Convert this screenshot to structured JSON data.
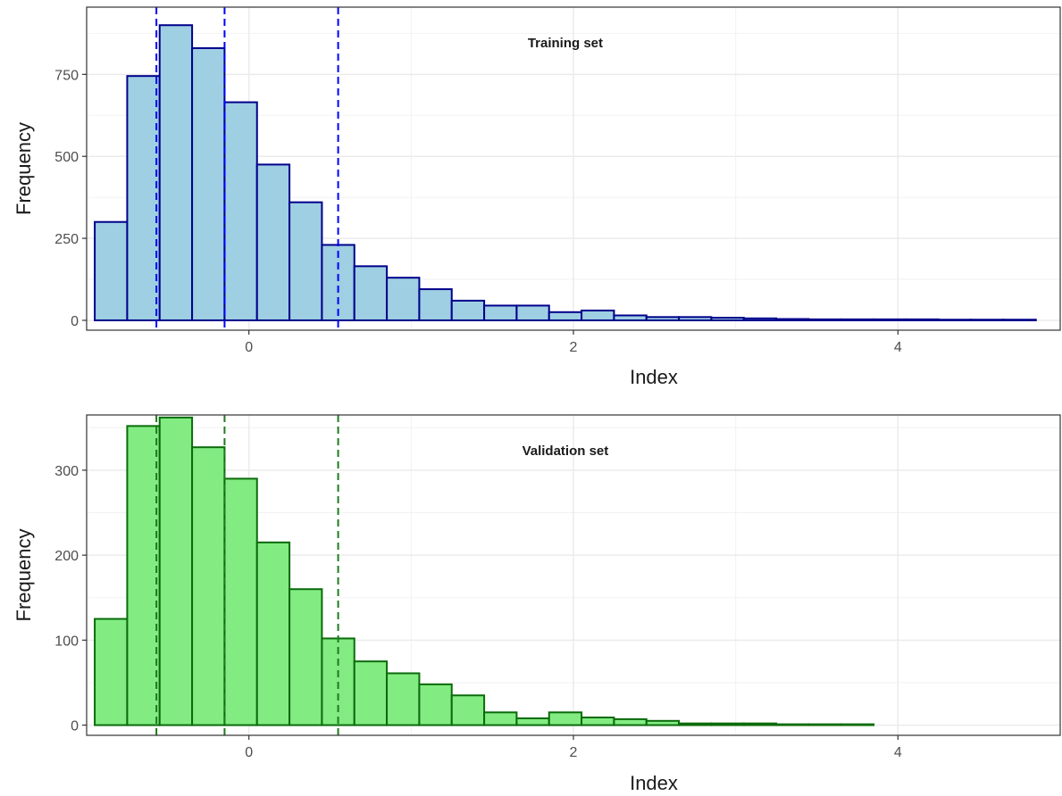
{
  "chart_data": [
    {
      "type": "bar",
      "title": "Training set",
      "xlabel": "Index",
      "ylabel": "Frequency",
      "xlim": [
        -1.0,
        5.0
      ],
      "ylim": [
        -30,
        955
      ],
      "x_ticks": [
        0,
        2,
        4
      ],
      "y_ticks": [
        0,
        250,
        500,
        750
      ],
      "x_minor_gridlines": [
        -1,
        1,
        3,
        5
      ],
      "y_minor_gridlines": [
        125,
        375,
        625,
        875
      ],
      "grid": true,
      "bin_width": 0.2,
      "bin_starts": [
        -0.95,
        -0.75,
        -0.55,
        -0.35,
        -0.15,
        0.05,
        0.25,
        0.45,
        0.65,
        0.85,
        1.05,
        1.25,
        1.45,
        1.65,
        1.85,
        2.05,
        2.25,
        2.45,
        2.65,
        2.85,
        3.05,
        3.25,
        3.45,
        3.65,
        3.85,
        4.05,
        4.25,
        4.45,
        4.65
      ],
      "values": [
        300,
        745,
        900,
        830,
        665,
        475,
        360,
        230,
        165,
        130,
        95,
        60,
        45,
        45,
        25,
        30,
        15,
        10,
        10,
        8,
        6,
        4,
        3,
        3,
        3,
        3,
        2,
        2,
        2
      ],
      "vlines": [
        -0.57,
        -0.15,
        0.55
      ],
      "colors": {
        "fill": "#9ecfe2",
        "stroke": "#00008b",
        "vline": "#0000ff"
      }
    },
    {
      "type": "bar",
      "title": "Validation set",
      "xlabel": "Index",
      "ylabel": "Frequency",
      "xlim": [
        -1.0,
        5.0
      ],
      "ylim": [
        -12,
        365
      ],
      "x_ticks": [
        0,
        2,
        4
      ],
      "y_ticks": [
        0,
        100,
        200,
        300
      ],
      "x_minor_gridlines": [
        -1,
        1,
        3,
        5
      ],
      "y_minor_gridlines": [
        50,
        150,
        250,
        350
      ],
      "grid": true,
      "bin_width": 0.2,
      "bin_starts": [
        -0.95,
        -0.75,
        -0.55,
        -0.35,
        -0.15,
        0.05,
        0.25,
        0.45,
        0.65,
        0.85,
        1.05,
        1.25,
        1.45,
        1.65,
        1.85,
        2.05,
        2.25,
        2.45,
        2.65,
        2.85,
        3.05,
        3.25,
        3.45,
        3.65,
        3.85,
        4.05,
        4.25,
        4.45,
        4.65
      ],
      "values": [
        125,
        352,
        362,
        327,
        290,
        215,
        160,
        102,
        75,
        61,
        48,
        35,
        15,
        8,
        15,
        9,
        7,
        5,
        2,
        2,
        2,
        1,
        1,
        1,
        0,
        0,
        0,
        0,
        0
      ],
      "vlines": [
        -0.57,
        -0.15,
        0.55
      ],
      "colors": {
        "fill": "#82ec82",
        "stroke": "#0b6b0b",
        "vline": "#1f7a1f"
      }
    }
  ]
}
